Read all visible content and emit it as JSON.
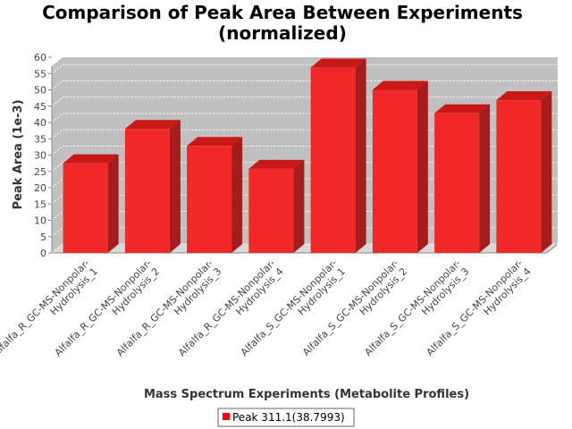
{
  "chart_data": {
    "type": "bar",
    "title_line1": "Comparison of Peak Area Between Experiments",
    "title_line2": "(normalized)",
    "xlabel": "Mass Spectrum Experiments (Metabolite Profiles)",
    "ylabel": "Peak Area (1e-3)",
    "ylim": [
      0,
      60
    ],
    "yticks": [
      "0",
      "5",
      "10",
      "15",
      "20",
      "25",
      "30",
      "35",
      "40",
      "45",
      "50",
      "55",
      "60"
    ],
    "categories": [
      {
        "line1": "Alfalfa_R_GC-MS-Nonpolar-",
        "line2": "Hydrolysis_1"
      },
      {
        "line1": "Alfalfa_R_GC-MS-Nonpolar-",
        "line2": "Hydrolysis_2"
      },
      {
        "line1": "Alfalfa_R_GC-MS-Nonpolar-",
        "line2": "Hydrolysis_3"
      },
      {
        "line1": "Alfalfa_R_GC-MS-Nonpolar-",
        "line2": "Hydrolysis_4"
      },
      {
        "line1": "Alfalfa_S_GC-MS-Nonpolar-",
        "line2": "Hydrolysis_1"
      },
      {
        "line1": "Alfalfa_S_GC-MS-Nonpolar-",
        "line2": "Hydrolysis_2"
      },
      {
        "line1": "Alfalfa_S_GC-MS-Nonpolar-",
        "line2": "Hydrolysis_3"
      },
      {
        "line1": "Alfalfa_S_GC-MS-Nonpolar-",
        "line2": "Hydrolysis_4"
      }
    ],
    "series": [
      {
        "name": "Peak 311.1(38.7993)",
        "color": "#ff0000",
        "values": [
          27.5,
          38,
          32.8,
          25.8,
          56.8,
          50,
          42.8,
          46.8
        ]
      }
    ],
    "grid": true,
    "legend_position": "bottom"
  }
}
